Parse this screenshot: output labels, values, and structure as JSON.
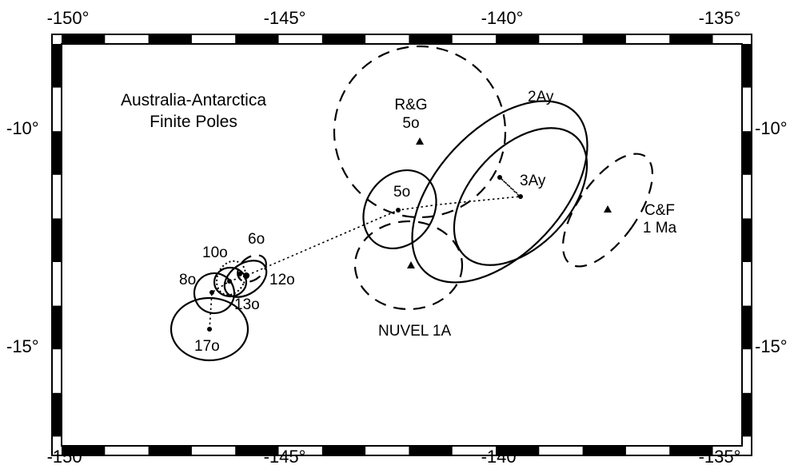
{
  "title": [
    "Australia-Antarctica",
    "Finite Poles"
  ],
  "longitude_ticks": [
    "-150°",
    "-145°",
    "-140°",
    "-135°"
  ],
  "latitude_ticks": [
    "-10°",
    "-15°"
  ],
  "colors": {
    "ink": "#000000",
    "background": "#ffffff"
  },
  "plate_poles": [
    {
      "label": "17o",
      "style": "solid",
      "lon": -146.4,
      "lat": -14.5
    },
    {
      "label": "8o",
      "style": "solid",
      "lon": -146.2,
      "lat": -13.8
    },
    {
      "label": "13o",
      "style": "solid",
      "lon": -146.0,
      "lat": -13.55
    },
    {
      "label": "10o",
      "style": "solid",
      "lon": -145.75,
      "lat": -13.5
    },
    {
      "label": "6o",
      "style": "dashed",
      "lon": -145.3,
      "lat": -13.3
    },
    {
      "label": "12o",
      "style": "solid",
      "lon": -145.3,
      "lat": -13.3
    },
    {
      "label": "5o",
      "style": "solid",
      "lon": -142.0,
      "lat": -11.85
    },
    {
      "label": "3Ay",
      "style": "solid",
      "lon": -139.2,
      "lat": -11.6
    },
    {
      "label": "2Ay",
      "style": "solid",
      "lon": -139.7,
      "lat": -11.15
    }
  ],
  "reference_poles": [
    {
      "label": "R&G 5o",
      "label_lines": [
        "R&G",
        "5o"
      ],
      "style": "dashed",
      "lon": -142.3,
      "lat": -10.3
    },
    {
      "label": "NUVEL 1A",
      "style": "dashed",
      "lon": -142.1,
      "lat": -13.1
    },
    {
      "label": "C&F 1 Ma",
      "label_lines": [
        "C&F",
        "1 Ma"
      ],
      "style": "dashed",
      "lon": -137.3,
      "lat": -11.85
    }
  ]
}
